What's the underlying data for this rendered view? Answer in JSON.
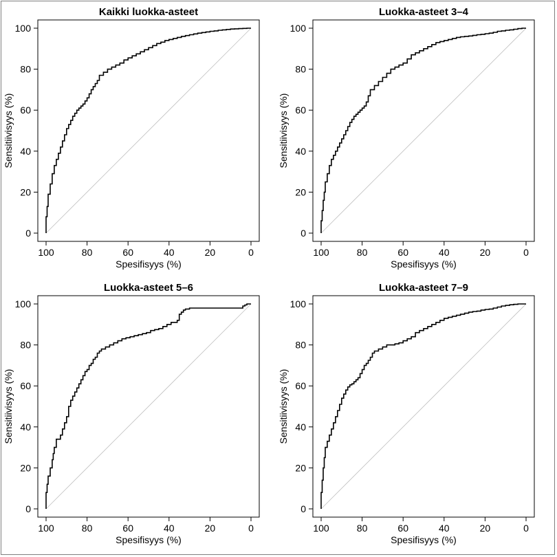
{
  "chart_data": [
    {
      "type": "line",
      "title": "Kaikki luokka-asteet",
      "xlabel": "Spesifisyys (%)",
      "ylabel": "Sensitiivisyys (%)",
      "xlim": [
        100,
        0
      ],
      "ylim": [
        0,
        100
      ],
      "x_reversed": true,
      "xticks": [
        "100",
        "80",
        "60",
        "40",
        "20",
        "0"
      ],
      "yticks": [
        "0",
        "20",
        "40",
        "60",
        "80",
        "100"
      ],
      "grid": false,
      "reference_line": {
        "x": [
          100,
          0
        ],
        "y": [
          0,
          100
        ],
        "color": "#c0c0c0"
      },
      "series": [
        {
          "color": "#000000",
          "x": [
            100,
            100,
            99.5,
            99,
            98,
            97,
            96,
            95,
            94,
            93,
            92,
            91,
            90,
            89,
            88,
            87,
            86,
            85,
            84,
            83,
            82,
            81,
            80,
            79,
            78,
            77,
            76,
            75,
            74,
            72,
            70,
            68,
            66,
            64,
            62,
            60,
            58,
            56,
            54,
            52,
            50,
            48,
            46,
            44,
            42,
            40,
            38,
            36,
            34,
            32,
            30,
            28,
            26,
            24,
            22,
            20,
            18,
            16,
            14,
            12,
            10,
            8,
            6,
            4,
            2,
            0
          ],
          "y": [
            0,
            3,
            8,
            13,
            19,
            24,
            29,
            33,
            36,
            39,
            42,
            45,
            48,
            51,
            53,
            55,
            57,
            58.5,
            60,
            61,
            62,
            63,
            64.5,
            66,
            68,
            70,
            71.5,
            73,
            74.5,
            77,
            78.5,
            80,
            81,
            82,
            83,
            84.5,
            85.5,
            86.5,
            87.5,
            88.5,
            89.5,
            90.5,
            91.5,
            92.5,
            93.2,
            94,
            94.5,
            95,
            95.5,
            96,
            96.4,
            96.8,
            97.2,
            97.6,
            97.9,
            98.2,
            98.5,
            98.7,
            99,
            99.2,
            99.4,
            99.6,
            99.7,
            99.8,
            99.9,
            100
          ]
        }
      ]
    },
    {
      "type": "line",
      "title": "Luokka-asteet 3–4",
      "xlabel": "Spesifisyys (%)",
      "ylabel": "Sensitiivisyys (%)",
      "xlim": [
        100,
        0
      ],
      "ylim": [
        0,
        100
      ],
      "x_reversed": true,
      "xticks": [
        "100",
        "80",
        "60",
        "40",
        "20",
        "0"
      ],
      "yticks": [
        "0",
        "20",
        "40",
        "60",
        "80",
        "100"
      ],
      "grid": false,
      "reference_line": {
        "x": [
          100,
          0
        ],
        "y": [
          0,
          100
        ],
        "color": "#c0c0c0"
      },
      "series": [
        {
          "color": "#000000",
          "x": [
            100,
            100,
            99.5,
            99,
            98.5,
            98,
            97,
            96,
            95,
            94,
            93,
            92,
            91,
            90,
            89,
            88,
            87,
            86,
            85,
            84,
            83,
            82,
            81,
            80,
            79,
            78,
            77,
            76,
            74,
            72,
            70,
            68,
            66,
            64,
            62,
            60,
            58,
            56,
            54,
            52,
            50,
            48,
            46,
            44,
            42,
            40,
            38,
            36,
            34,
            32,
            30,
            28,
            26,
            24,
            22,
            20,
            18,
            16,
            14,
            12,
            10,
            8,
            6,
            4,
            2,
            0
          ],
          "y": [
            0,
            2,
            6,
            11,
            16,
            20,
            25,
            29,
            33,
            36,
            38,
            40,
            42,
            44,
            46,
            48,
            50,
            52,
            54,
            55.5,
            57,
            58,
            59,
            60,
            61,
            62,
            64,
            67,
            70,
            72,
            74,
            76,
            78,
            80,
            81,
            82,
            83,
            85,
            87,
            88,
            89,
            90,
            91,
            92,
            93,
            93.5,
            94,
            94.5,
            95,
            95.5,
            95.8,
            96,
            96.2,
            96.5,
            96.8,
            97,
            97.3,
            97.6,
            98,
            98.5,
            98.7,
            99,
            99.2,
            99.5,
            99.8,
            100
          ]
        }
      ]
    },
    {
      "type": "line",
      "title": "Luokka-asteet 5–6",
      "xlabel": "Spesifisyys (%)",
      "ylabel": "Sensitiivisyys (%)",
      "xlim": [
        100,
        0
      ],
      "ylim": [
        0,
        100
      ],
      "x_reversed": true,
      "xticks": [
        "100",
        "80",
        "60",
        "40",
        "20",
        "0"
      ],
      "yticks": [
        "0",
        "20",
        "40",
        "60",
        "80",
        "100"
      ],
      "grid": false,
      "reference_line": {
        "x": [
          100,
          0
        ],
        "y": [
          0,
          100
        ],
        "color": "#c0c0c0"
      },
      "series": [
        {
          "color": "#000000",
          "x": [
            100,
            100,
            99.5,
            99,
            98,
            97,
            96.5,
            96,
            95,
            94,
            93,
            92,
            91,
            90,
            89,
            88,
            87,
            86,
            85,
            84,
            83,
            82,
            81,
            80,
            79,
            78,
            77,
            76,
            75,
            74,
            73,
            71,
            69,
            67,
            65,
            63,
            61,
            59,
            57,
            55,
            53,
            51,
            49,
            47,
            45,
            43,
            41,
            39,
            37,
            36,
            35,
            34,
            33,
            32,
            30,
            28,
            26,
            24,
            22,
            20,
            18,
            16,
            14,
            12,
            10,
            8,
            6,
            4,
            3,
            2,
            1,
            0
          ],
          "y": [
            0,
            4,
            8,
            12,
            16,
            20,
            24,
            27,
            30,
            34,
            34,
            36,
            39,
            42,
            45,
            50,
            53,
            55,
            57,
            59,
            61,
            63,
            65,
            67,
            68,
            70,
            71,
            73,
            74,
            76,
            77,
            78,
            79,
            80,
            81,
            82,
            83,
            83.5,
            84,
            84.5,
            85,
            85.5,
            86,
            87,
            87.5,
            88,
            89,
            90,
            91,
            91,
            92,
            95,
            96,
            97,
            97.5,
            98,
            98,
            98,
            98,
            98,
            98,
            98,
            98,
            98,
            98,
            98,
            98,
            98,
            99,
            99.5,
            100,
            100
          ]
        }
      ]
    },
    {
      "type": "line",
      "title": "Luokka-asteet 7–9",
      "xlabel": "Spesifisyys (%)",
      "ylabel": "Sensitiivisyys (%)",
      "xlim": [
        100,
        0
      ],
      "ylim": [
        0,
        100
      ],
      "x_reversed": true,
      "xticks": [
        "100",
        "80",
        "60",
        "40",
        "20",
        "0"
      ],
      "yticks": [
        "0",
        "20",
        "40",
        "60",
        "80",
        "100"
      ],
      "grid": false,
      "reference_line": {
        "x": [
          100,
          0
        ],
        "y": [
          0,
          100
        ],
        "color": "#c0c0c0"
      },
      "series": [
        {
          "color": "#000000",
          "x": [
            100,
            100,
            99.5,
            99,
            98.5,
            98,
            97,
            96,
            95,
            94,
            93,
            92,
            91,
            90,
            89,
            88,
            87,
            86,
            85,
            84,
            83,
            82,
            81,
            80,
            79,
            78,
            77,
            76,
            75,
            74,
            72,
            70,
            68,
            66,
            64,
            62,
            60,
            58,
            56,
            54,
            52,
            50,
            48,
            46,
            44,
            42,
            40,
            38,
            36,
            34,
            32,
            30,
            28,
            26,
            24,
            22,
            20,
            18,
            16,
            14,
            12,
            10,
            8,
            6,
            4,
            2,
            0
          ],
          "y": [
            0,
            3,
            8,
            14,
            20,
            25,
            30,
            33,
            36,
            39,
            42,
            45,
            48,
            51,
            54,
            56,
            58,
            59.5,
            60.5,
            61,
            62,
            63,
            64,
            66,
            68,
            70,
            71,
            72.5,
            74,
            76,
            77,
            78,
            79,
            80,
            80,
            80.5,
            81,
            82,
            83,
            84,
            86,
            87,
            88,
            89,
            90,
            91,
            92,
            93,
            93.5,
            94,
            94.5,
            95,
            95.5,
            96,
            96.3,
            96.5,
            97,
            97.3,
            97.5,
            98,
            98.5,
            99,
            99.3,
            99.6,
            99.8,
            100,
            100
          ]
        }
      ]
    }
  ]
}
